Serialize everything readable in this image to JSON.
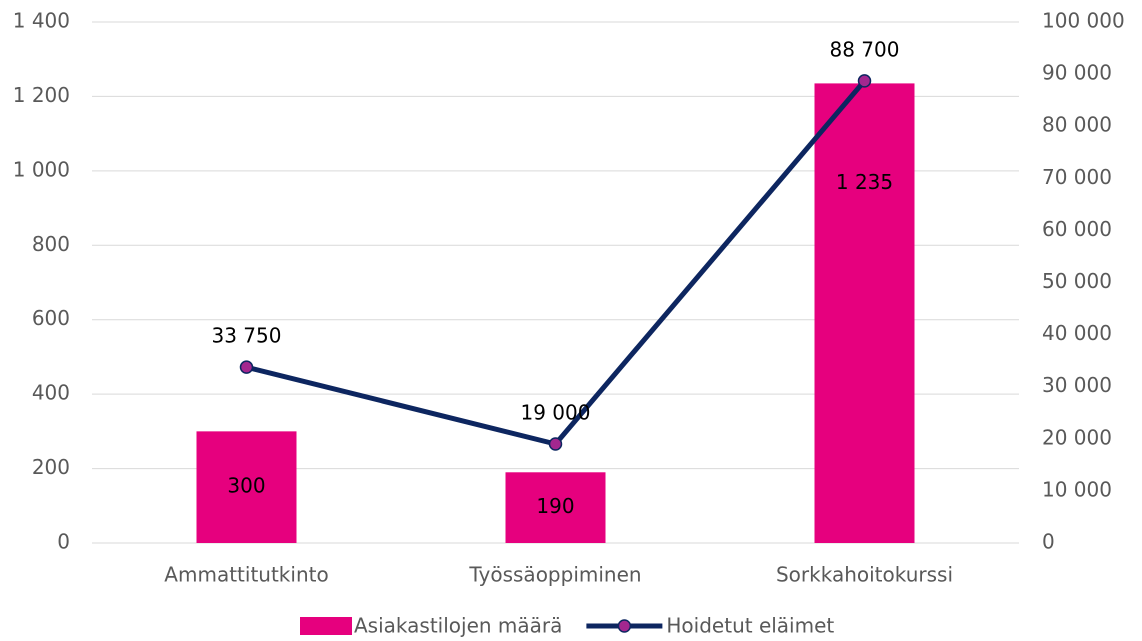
{
  "chart_data": {
    "type": "combo",
    "categories": [
      "Ammattitutkinto",
      "Työssäoppiminen",
      "Sorkkahoitokurssi"
    ],
    "series": [
      {
        "name": "Asiakastilojen määrä",
        "type": "bar",
        "axis": "y",
        "color": "#e6007e",
        "values": [
          300,
          190,
          1235
        ],
        "value_labels": [
          "300",
          "190",
          "1 235"
        ]
      },
      {
        "name": "Hoidetut eläimet",
        "type": "line",
        "axis": "y2",
        "color": "#0d2660",
        "marker_color": "#a3278f",
        "values": [
          33750,
          19000,
          88700
        ],
        "value_labels": [
          "33 750",
          "19 000",
          "88 700"
        ]
      }
    ],
    "ylim": [
      0,
      1400
    ],
    "yticks": [
      0,
      200,
      400,
      600,
      800,
      {
        "value": 1000,
        "label": "1 000"
      },
      {
        "value": 1200,
        "label": "1 200"
      },
      {
        "value": 1400,
        "label": "1 400"
      }
    ],
    "y2lim": [
      0,
      100000
    ],
    "y2ticks": [
      0,
      {
        "value": 10000,
        "label": "10 000"
      },
      {
        "value": 20000,
        "label": "20 000"
      },
      {
        "value": 30000,
        "label": "30 000"
      },
      {
        "value": 40000,
        "label": "40 000"
      },
      {
        "value": 50000,
        "label": "50 000"
      },
      {
        "value": 60000,
        "label": "60 000"
      },
      {
        "value": 70000,
        "label": "70 000"
      },
      {
        "value": 80000,
        "label": "80 000"
      },
      {
        "value": 90000,
        "label": "90 000"
      },
      {
        "value": 100000,
        "label": "100 000"
      }
    ],
    "grid": true,
    "legend": "bottom"
  }
}
